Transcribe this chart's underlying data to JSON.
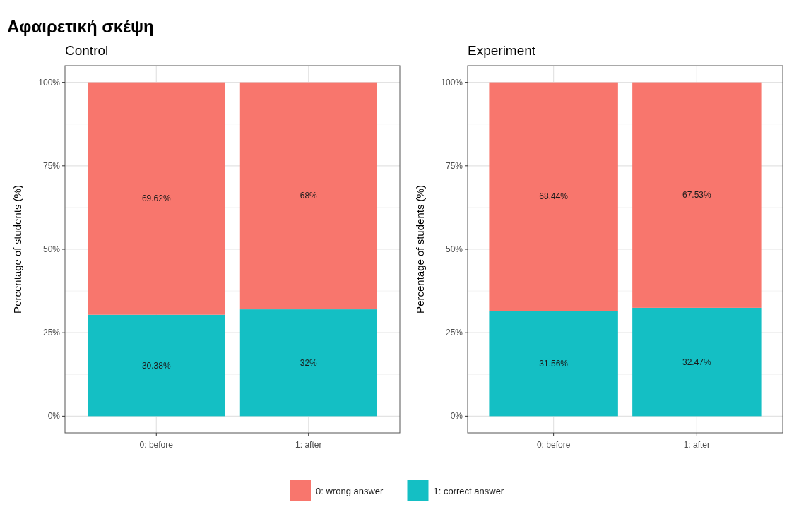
{
  "chart_data": [
    {
      "type": "bar",
      "title": "Control",
      "ylabel": "Percentage of students (%)",
      "annotations": [
        "Αφαιρετική σκέψη"
      ],
      "categories": [
        "0: before",
        "1: after"
      ],
      "stacked": true,
      "ylim": [
        -5,
        105
      ],
      "yticks": [
        {
          "value": 0,
          "label": "0%"
        },
        {
          "value": 25,
          "label": "25%"
        },
        {
          "value": 50,
          "label": "50%"
        },
        {
          "value": 75,
          "label": "75%"
        },
        {
          "value": 100,
          "label": "100%"
        }
      ],
      "grid": true,
      "legend": "bottom",
      "series": [
        {
          "name": "1: correct answer",
          "color": "#14bfc4",
          "values": [
            30.38,
            32
          ],
          "value_labels": [
            "30.38%",
            "32%"
          ]
        },
        {
          "name": "0: wrong answer",
          "color": "#f8766d",
          "values": [
            69.62,
            68
          ],
          "value_labels": [
            "69.62%",
            "68%"
          ]
        }
      ]
    },
    {
      "type": "bar",
      "title": "Experiment",
      "ylabel": "Percentage of students (%)",
      "categories": [
        "0: before",
        "1: after"
      ],
      "stacked": true,
      "ylim": [
        -5,
        105
      ],
      "yticks": [
        {
          "value": 0,
          "label": "0%"
        },
        {
          "value": 25,
          "label": "25%"
        },
        {
          "value": 50,
          "label": "50%"
        },
        {
          "value": 75,
          "label": "75%"
        },
        {
          "value": 100,
          "label": "100%"
        }
      ],
      "grid": true,
      "series": [
        {
          "color": "#14bfc4",
          "values": [
            31.56,
            32.47
          ],
          "value_labels": [
            "31.56%",
            "32.47%"
          ]
        },
        {
          "color": "#f8766d",
          "values": [
            68.44,
            67.53
          ],
          "value_labels": [
            "68.44%",
            "67.53%"
          ]
        }
      ]
    }
  ]
}
